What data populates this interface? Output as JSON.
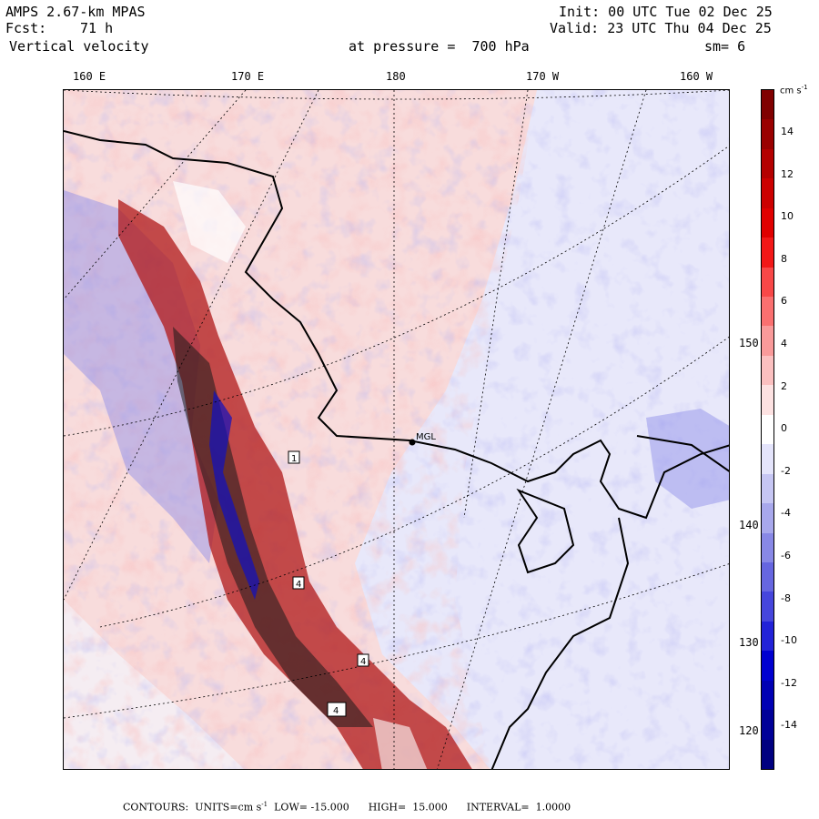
{
  "header": {
    "model": "AMPS 2.67-km MPAS",
    "init": "Init: 00 UTC Tue 02 Dec 25",
    "fcst_label": "Fcst:",
    "fcst_value": "71 h",
    "valid": "Valid: 23 UTC Thu 04 Dec 25",
    "field": "Vertical velocity",
    "pressure": "at pressure =  700 hPa",
    "smoothing": "sm= 6"
  },
  "top_longitudes": [
    "160 E",
    "170 E",
    "180",
    "170 W",
    "160 W"
  ],
  "right_longitudes": [
    "150 W",
    "140 W",
    "130 W",
    "120 W"
  ],
  "station_label": "MGL",
  "box_labels": [
    "1",
    "4",
    "4",
    "4"
  ],
  "colorbar": {
    "units": "cm s",
    "units_exp": "-1",
    "ticks": [
      "14",
      "12",
      "10",
      "8",
      "6",
      "4",
      "2",
      "0",
      "-2",
      "-4",
      "-6",
      "-8",
      "-10",
      "-12",
      "-14"
    ],
    "colors": [
      "#800000",
      "#9a0000",
      "#b40000",
      "#cc0000",
      "#e00000",
      "#f21818",
      "#f84848",
      "#fa7070",
      "#f99a9a",
      "#fbc0c0",
      "#fde2e2",
      "#ffffff",
      "#e4e4fb",
      "#c6c6f3",
      "#a8a8ec",
      "#8888e6",
      "#6666e0",
      "#4646dc",
      "#2222d8",
      "#0000d0",
      "#0000b4",
      "#000098",
      "#000080"
    ]
  },
  "footer": {
    "contours": "CONTOURS:",
    "units_label": "UNITS=cm s",
    "units_exp": "-1",
    "low_label": "LOW=",
    "low_value": "-15.000",
    "high_label": "HIGH=",
    "high_value": "15.000",
    "interval_label": "INTERVAL=",
    "interval_value": "1.0000"
  },
  "colors": {
    "background_warm": "#f7d8d8",
    "background_cool": "#e8e8fa",
    "coast": "#000000"
  }
}
